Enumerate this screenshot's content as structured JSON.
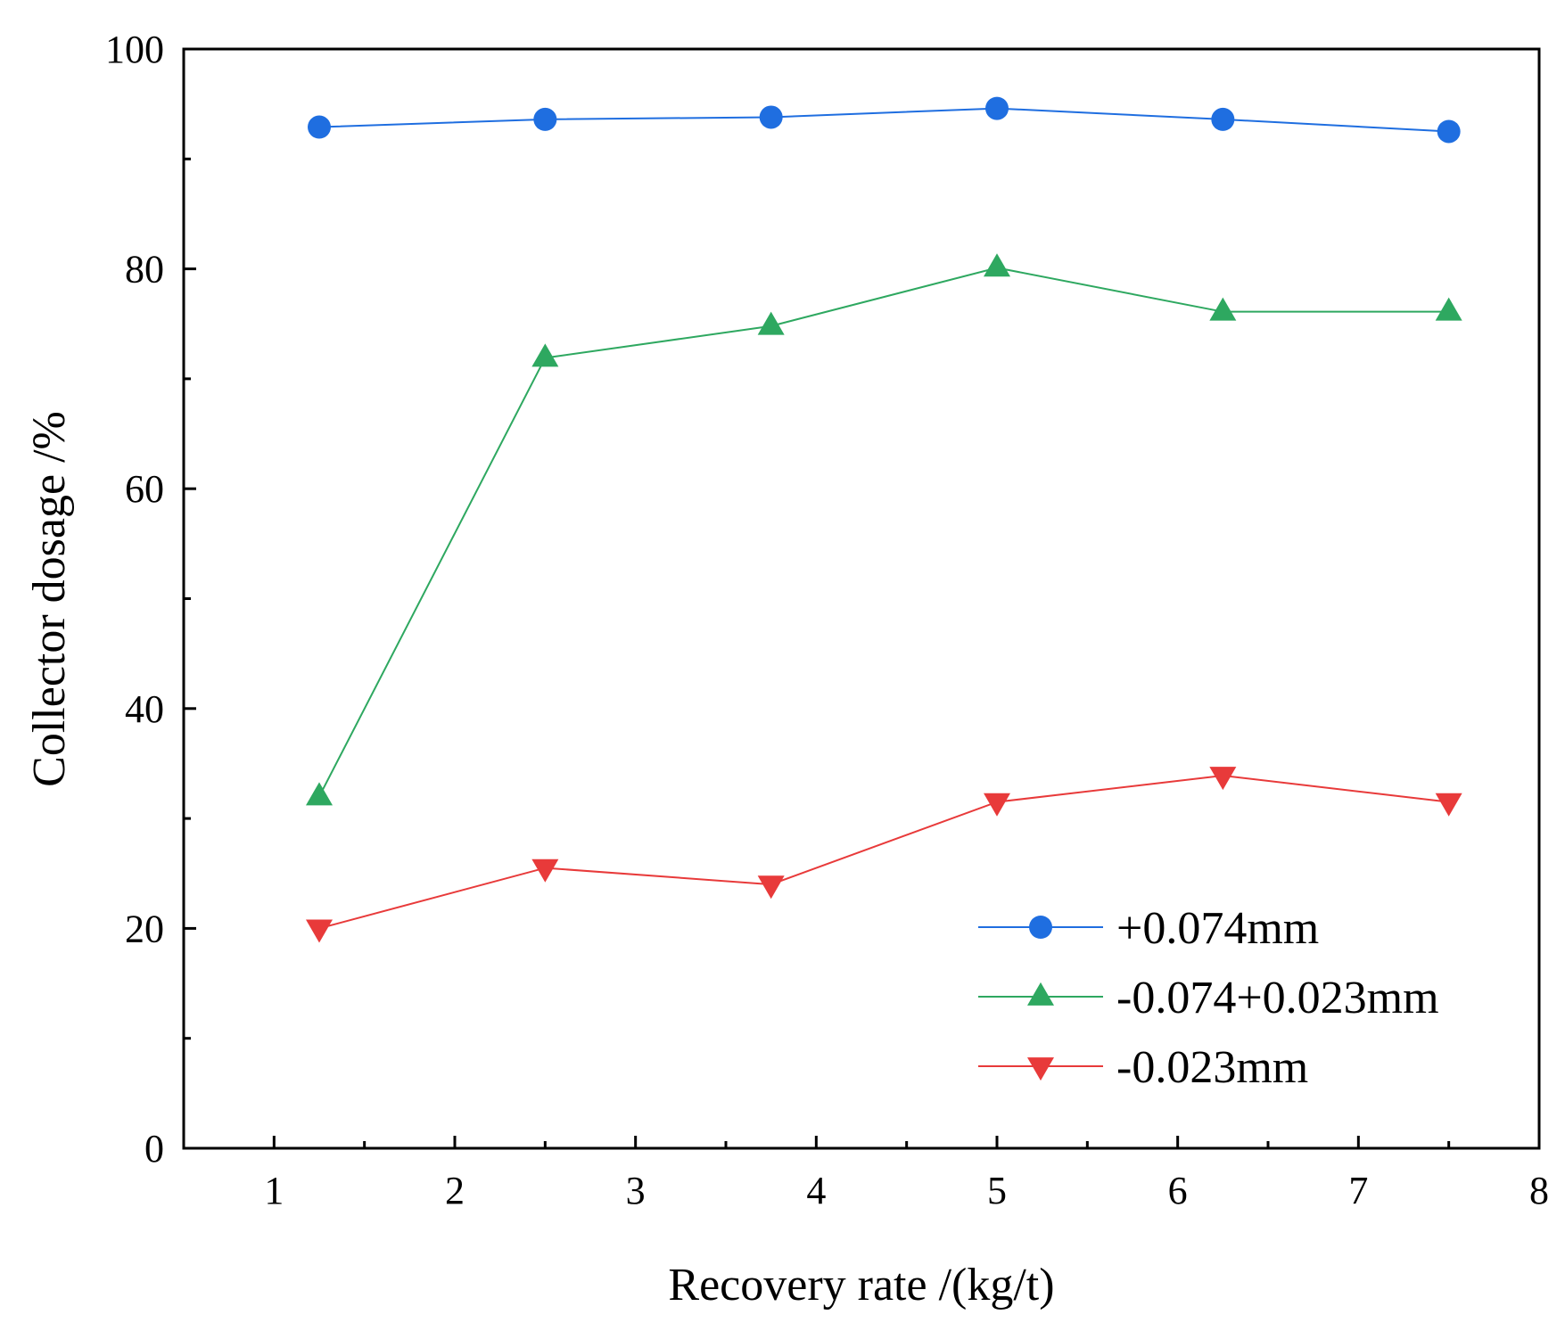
{
  "chart_data": {
    "type": "line",
    "title": "",
    "xlabel": "Recovery rate /(kg/t)",
    "ylabel": "Collector dosage /%",
    "xlim": [
      0.5,
      8
    ],
    "ylim": [
      0,
      100
    ],
    "x_ticks": [
      1,
      2,
      3,
      4,
      5,
      6,
      7,
      8
    ],
    "x_tick_labels": [
      "1",
      "2",
      "3",
      "4",
      "5",
      "6",
      "7",
      "8"
    ],
    "y_ticks": [
      0,
      20,
      40,
      60,
      80,
      100
    ],
    "y_tick_labels": [
      "0",
      "20",
      "40",
      "60",
      "80",
      "100"
    ],
    "grid": false,
    "legend_position": "bottom-right",
    "x": [
      1.25,
      2.5,
      3.75,
      5.0,
      6.25,
      7.5
    ],
    "series": [
      {
        "name": "+0.074mm",
        "marker": "circle",
        "color": "#1f6ee0",
        "values": [
          92.9,
          93.6,
          93.8,
          94.6,
          93.6,
          92.5
        ]
      },
      {
        "name": "-0.074+0.023mm",
        "marker": "triangle-up",
        "color": "#2ea860",
        "values": [
          32.0,
          71.9,
          74.8,
          80.1,
          76.1,
          76.1
        ]
      },
      {
        "name": "-0.023mm",
        "marker": "triangle-down",
        "color": "#e83a3a",
        "values": [
          20.0,
          25.5,
          24.0,
          31.5,
          33.9,
          31.5
        ]
      }
    ]
  }
}
